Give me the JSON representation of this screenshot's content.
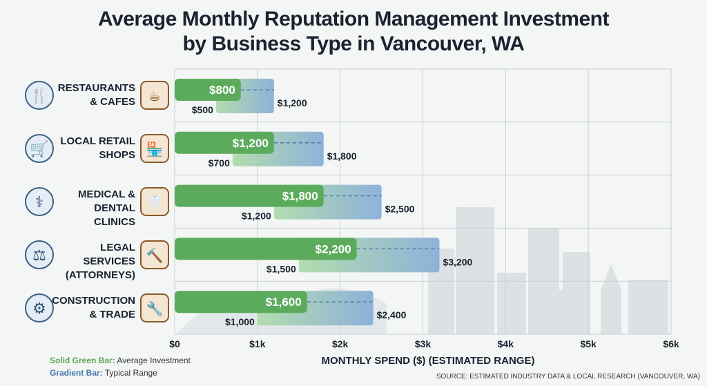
{
  "title_line1": "Average Monthly Reputation Management Investment",
  "title_line2": "by Business Type in Vancouver, WA",
  "colors": {
    "green": "#5cab5c",
    "green_light": "#a8d6a4",
    "blue": "#8fb3d8",
    "grid": "#c9cfd6"
  },
  "rows": [
    {
      "line1": "RESTAURANTS",
      "line2": "& CAFES",
      "icon_left": "cutlery-icon",
      "icon_right": "coffee-cup-icon"
    },
    {
      "line1": "LOCAL RETAIL",
      "line2": "SHOPS",
      "icon_left": "shopping-cart-icon",
      "icon_right": "storefront-icon"
    },
    {
      "line1": "MEDICAL &",
      "line2": "DENTAL CLINICS",
      "icon_left": "caduceus-icon",
      "icon_right": "tooth-icon"
    },
    {
      "line1": "LEGAL SERVICES",
      "line2": "(ATTORNEYS)",
      "icon_left": "scales-icon",
      "icon_right": "gavel-icon"
    },
    {
      "line1": "CONSTRUCTION",
      "line2": "& TRADE",
      "icon_left": "hardhat-gear-icon",
      "icon_right": "wrench-screwdriver-icon"
    }
  ],
  "legend": {
    "solid_key": "Solid Green Bar:",
    "solid_text": " Average Investment",
    "gradient_key": "Gradient Bar:",
    "gradient_text": " Typical Range"
  },
  "source": "SOURCE: ESTIMATED INDUSTRY DATA & LOCAL RESEARCH (VANCOUVER, WA)",
  "chart_data": {
    "type": "bar",
    "orientation": "horizontal",
    "categories": [
      "RESTAURANTS & CAFES",
      "LOCAL RETAIL SHOPS",
      "MEDICAL & DENTAL CLINICS",
      "LEGAL SERVICES (ATTORNEYS)",
      "CONSTRUCTION & TRADE"
    ],
    "series": [
      {
        "name": "Average Investment",
        "values": [
          800,
          1200,
          1800,
          2200,
          1600
        ],
        "labels": [
          "$800",
          "$1,200",
          "$1,800",
          "$2,200",
          "$1,600"
        ]
      },
      {
        "name": "Typical Range",
        "low": [
          500,
          700,
          1200,
          1500,
          1000
        ],
        "high": [
          1200,
          1800,
          2500,
          3200,
          2400
        ],
        "low_labels": [
          "$500",
          "$700",
          "$1,200",
          "$1,500",
          "$1,000"
        ],
        "high_labels": [
          "$1,200",
          "$1,800",
          "$2,500",
          "$3,200",
          "$2,400"
        ]
      }
    ],
    "xlabel": "MONTHLY SPEND ($) (ESTIMATED RANGE)",
    "xlim": [
      0,
      6000
    ],
    "xticks": [
      0,
      1000,
      2000,
      3000,
      4000,
      5000,
      6000
    ],
    "xtick_labels": [
      "$0",
      "$1k",
      "$2k",
      "$3k",
      "$4k",
      "$5k",
      "$6k"
    ],
    "grid": true
  }
}
